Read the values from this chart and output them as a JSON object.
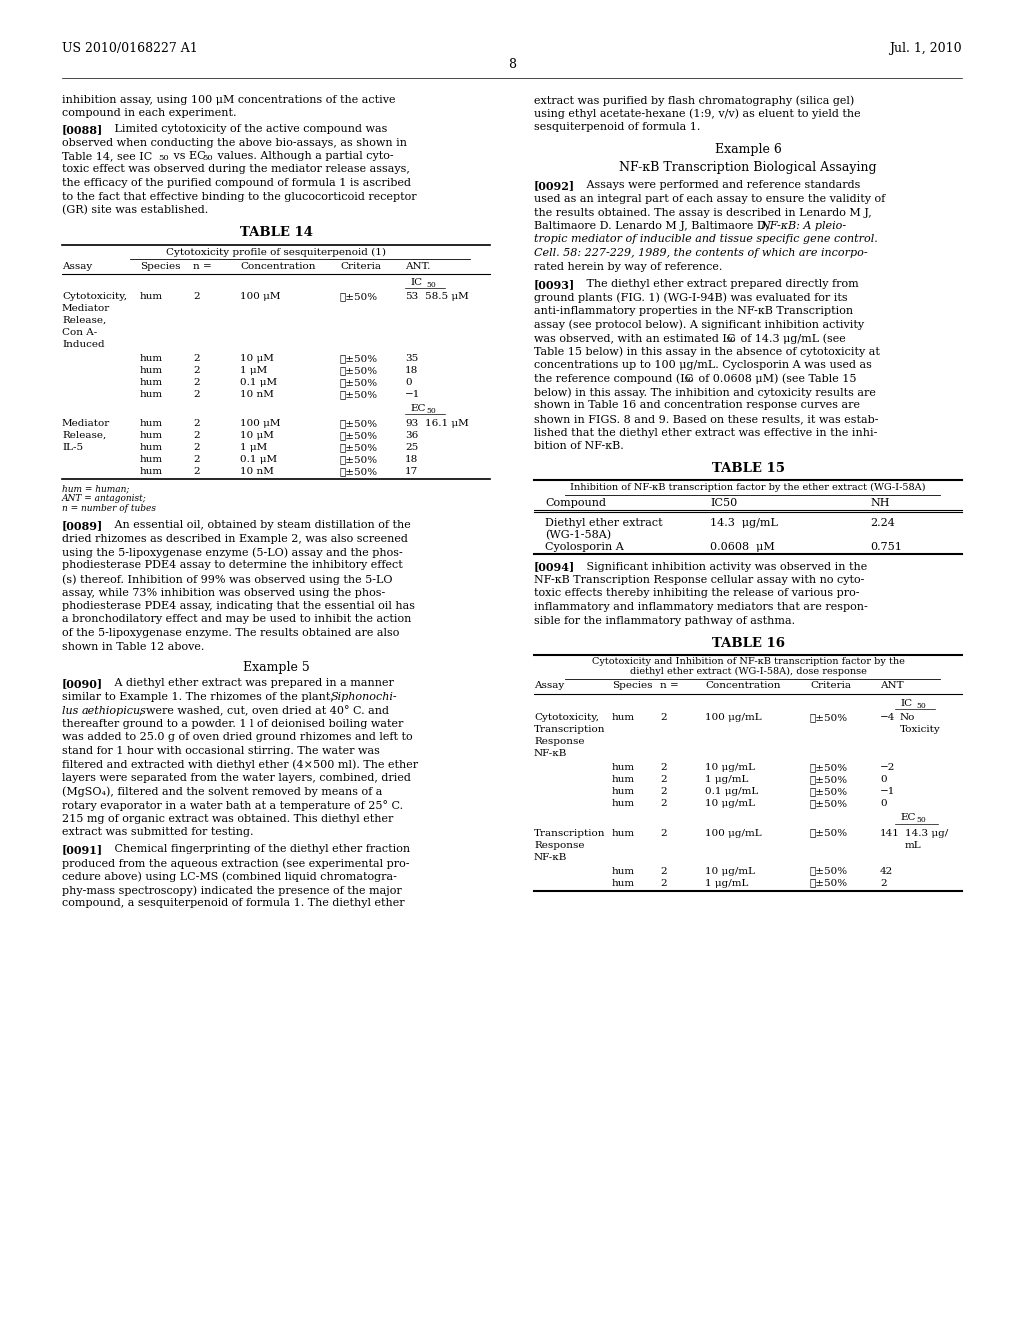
{
  "background_color": "#ffffff",
  "page_number": "8",
  "header_left": "US 2010/0168227 A1",
  "header_right": "Jul. 1, 2010"
}
